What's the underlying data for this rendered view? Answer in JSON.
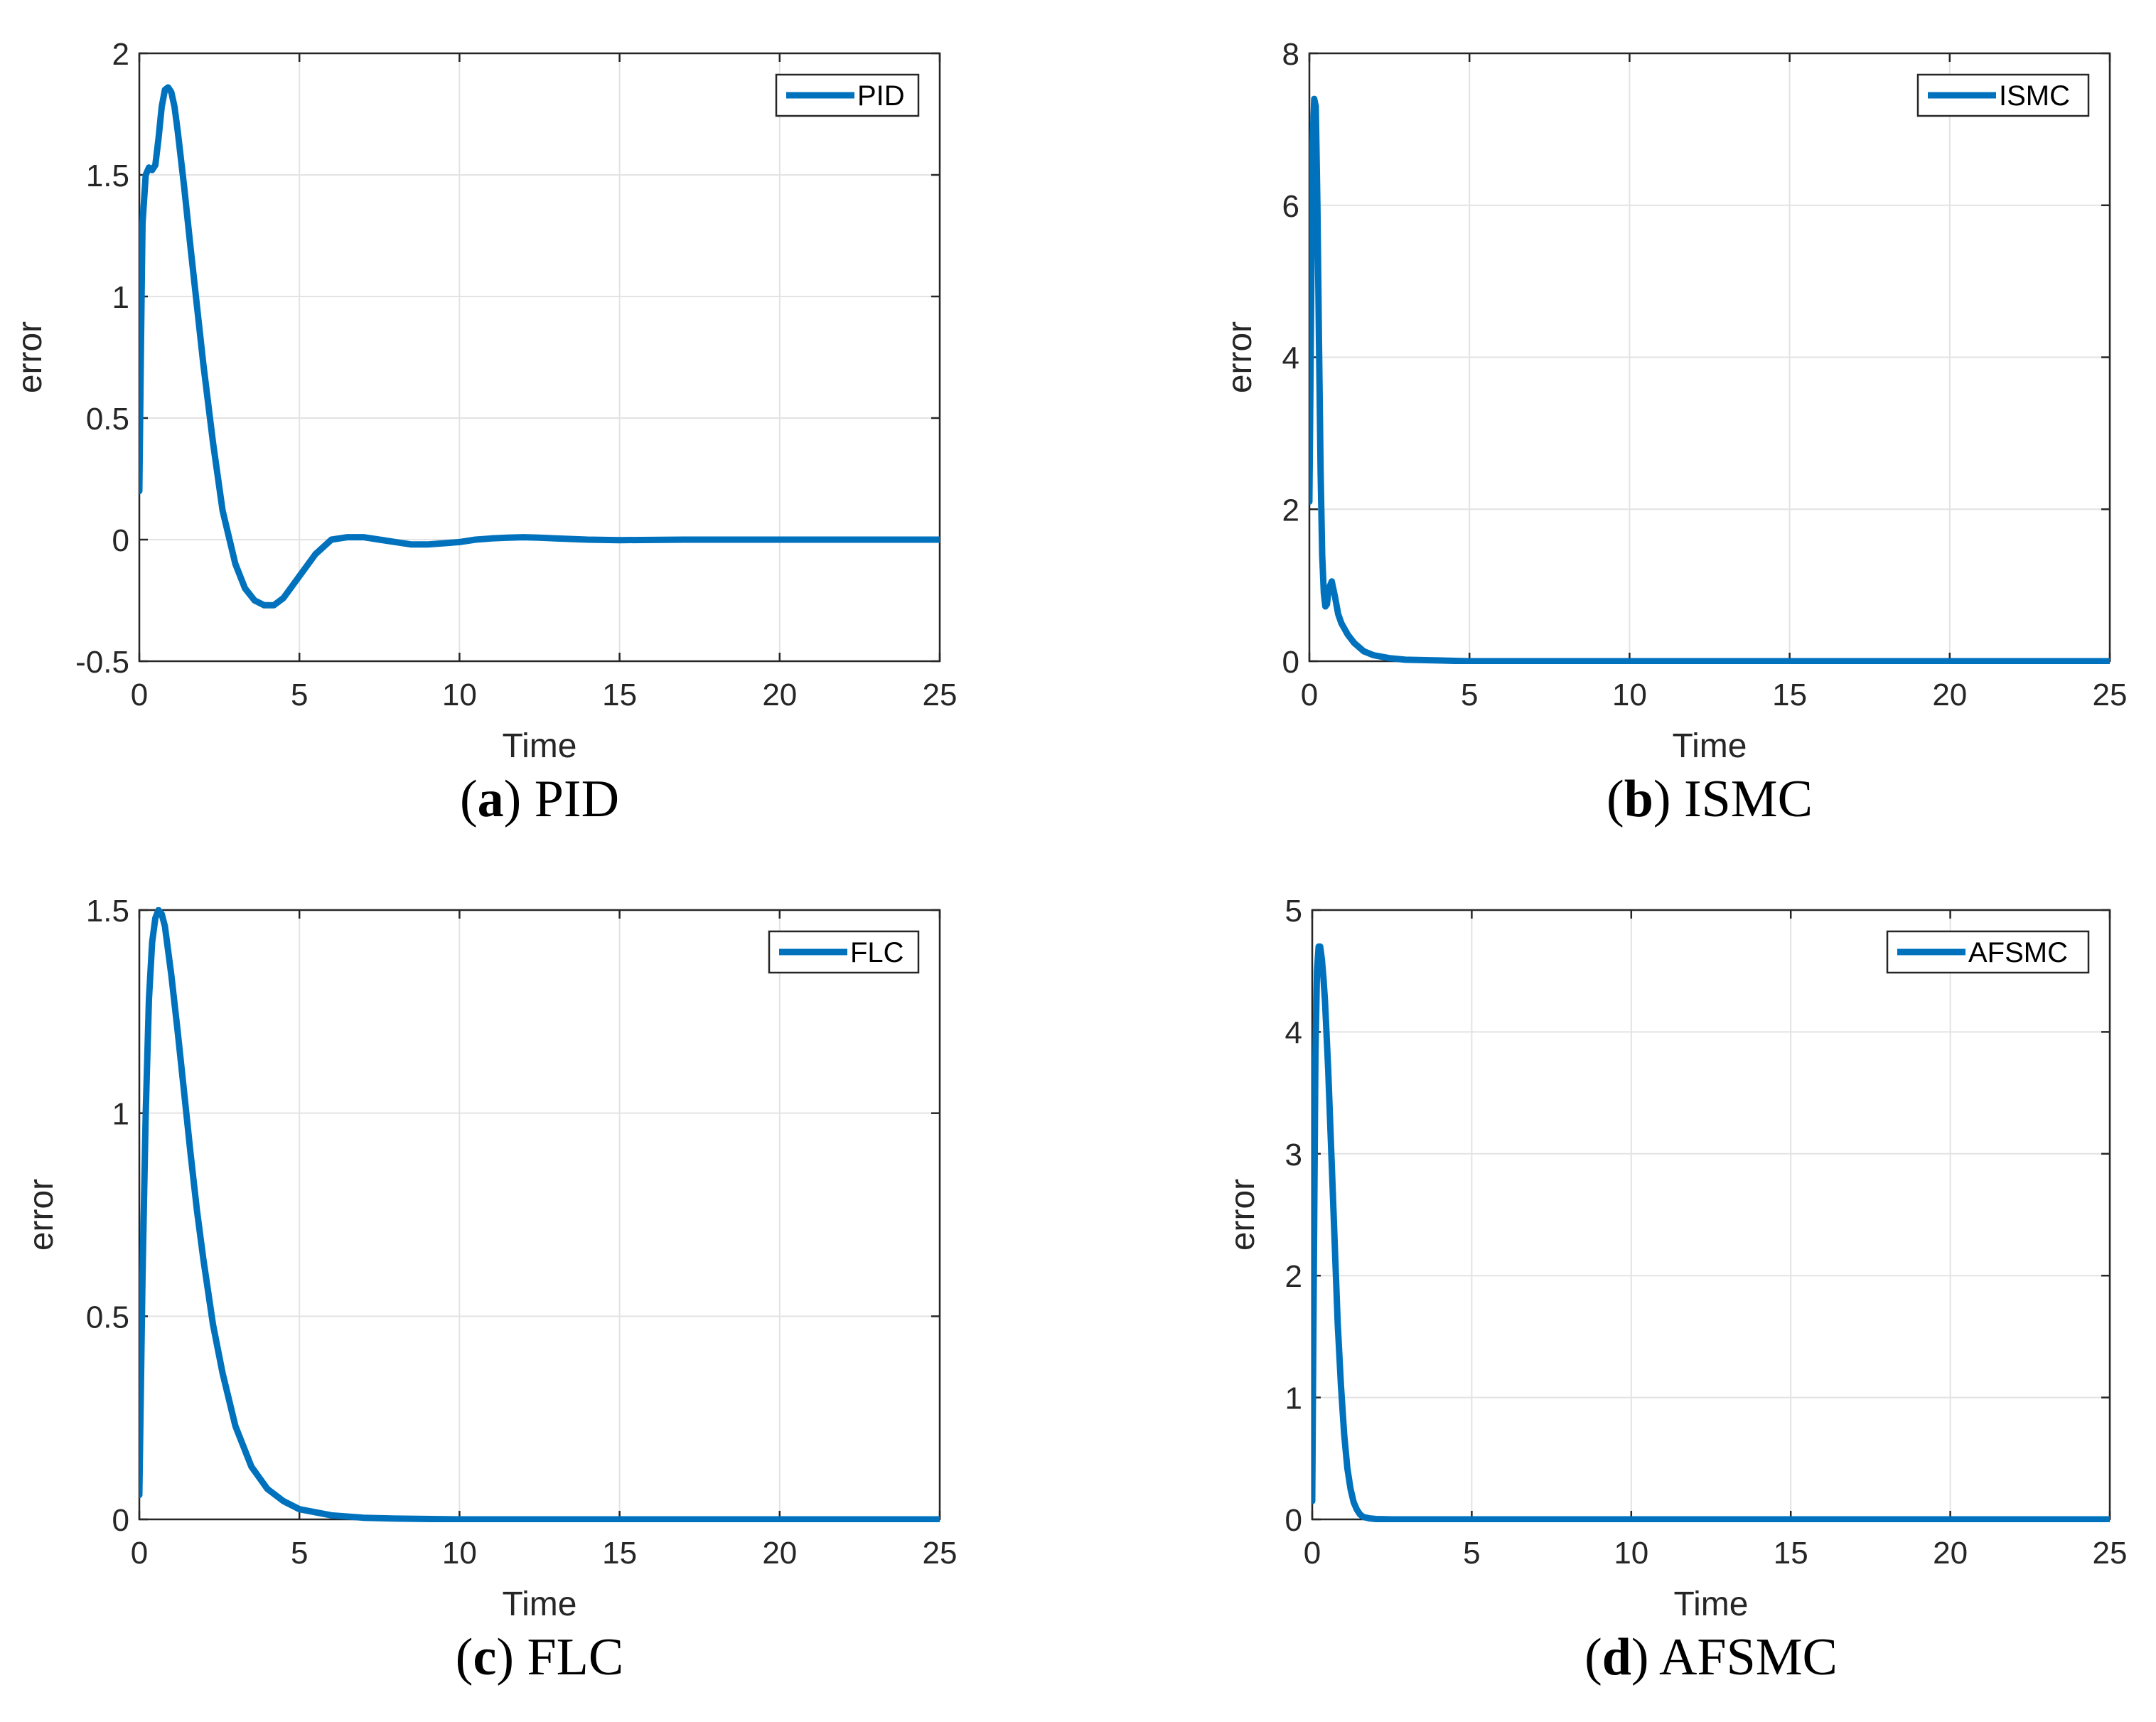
{
  "figure": {
    "colors": {
      "line": "#0072bd",
      "grid": "#e3e3e3",
      "axis": "#262626"
    }
  },
  "chart_data": [
    {
      "type": "line",
      "panel_letter": "a",
      "panel_title": "PID",
      "caption": {
        "open": "(",
        "letter": "a",
        "close": ")",
        "title": " PID"
      },
      "xlabel": "Time",
      "ylabel": "error",
      "xlim": [
        0,
        25
      ],
      "ylim": [
        -0.5,
        2
      ],
      "xticks": [
        0,
        5,
        10,
        15,
        20,
        25
      ],
      "xtick_labels": [
        "0",
        "5",
        "10",
        "15",
        "20",
        "25"
      ],
      "yticks": [
        -0.5,
        0,
        0.5,
        1,
        1.5,
        2
      ],
      "ytick_labels": [
        "-0.5",
        "0",
        "0.5",
        "1",
        "1.5",
        "2"
      ],
      "grid": true,
      "legend": {
        "entries": [
          "PID"
        ],
        "location": "top-right"
      },
      "series": [
        {
          "name": "PID",
          "x": [
            0,
            0.05,
            0.1,
            0.2,
            0.3,
            0.4,
            0.5,
            0.6,
            0.7,
            0.8,
            0.9,
            1.0,
            1.1,
            1.2,
            1.4,
            1.6,
            1.8,
            2.0,
            2.3,
            2.6,
            3.0,
            3.3,
            3.6,
            3.9,
            4.2,
            4.5,
            5.0,
            5.5,
            6.0,
            6.5,
            7.0,
            7.5,
            8.0,
            8.5,
            9.0,
            9.5,
            10.0,
            10.5,
            11.0,
            11.5,
            12.0,
            12.5,
            13.0,
            14.0,
            15.0,
            17.0,
            20.0,
            25.0
          ],
          "y": [
            0.2,
            0.8,
            1.3,
            1.5,
            1.53,
            1.52,
            1.54,
            1.65,
            1.78,
            1.85,
            1.86,
            1.84,
            1.78,
            1.68,
            1.45,
            1.2,
            0.96,
            0.72,
            0.4,
            0.12,
            -0.1,
            -0.2,
            -0.25,
            -0.27,
            -0.27,
            -0.24,
            -0.15,
            -0.06,
            0.0,
            0.01,
            0.01,
            0.0,
            -0.01,
            -0.02,
            -0.02,
            -0.015,
            -0.01,
            0.0,
            0.005,
            0.008,
            0.01,
            0.008,
            0.005,
            0.0,
            -0.002,
            0.0,
            0.0,
            0.0
          ]
        }
      ]
    },
    {
      "type": "line",
      "panel_letter": "b",
      "panel_title": "ISMC",
      "caption": {
        "open": "(",
        "letter": "b",
        "close": ")",
        "title": " ISMC"
      },
      "xlabel": "Time",
      "ylabel": "error",
      "xlim": [
        0,
        25
      ],
      "ylim": [
        0,
        8
      ],
      "xticks": [
        0,
        5,
        10,
        15,
        20,
        25
      ],
      "xtick_labels": [
        "0",
        "5",
        "10",
        "15",
        "20",
        "25"
      ],
      "yticks": [
        0,
        2,
        4,
        6,
        8
      ],
      "ytick_labels": [
        "0",
        "2",
        "4",
        "6",
        "8"
      ],
      "grid": true,
      "legend": {
        "entries": [
          "ISMC"
        ],
        "location": "top-right"
      },
      "series": [
        {
          "name": "ISMC",
          "x": [
            0,
            0.05,
            0.1,
            0.15,
            0.2,
            0.25,
            0.3,
            0.35,
            0.4,
            0.45,
            0.5,
            0.55,
            0.6,
            0.7,
            0.8,
            0.9,
            1.0,
            1.2,
            1.4,
            1.7,
            2.0,
            2.5,
            3.0,
            4.0,
            5.0,
            7.0,
            10.0,
            25.0
          ],
          "y": [
            2.1,
            4.5,
            6.8,
            7.4,
            7.3,
            6.0,
            4.2,
            2.5,
            1.4,
            0.9,
            0.72,
            0.75,
            0.95,
            1.05,
            0.85,
            0.62,
            0.5,
            0.35,
            0.24,
            0.13,
            0.08,
            0.04,
            0.02,
            0.01,
            0.0,
            0.0,
            0.0,
            0.0
          ]
        }
      ]
    },
    {
      "type": "line",
      "panel_letter": "c",
      "panel_title": "FLC",
      "caption": {
        "open": "(",
        "letter": "c",
        "close": ")",
        "title": " FLC"
      },
      "xlabel": "Time",
      "ylabel": "error",
      "xlim": [
        0,
        25
      ],
      "ylim": [
        0,
        1.5
      ],
      "xticks": [
        0,
        5,
        10,
        15,
        20,
        25
      ],
      "xtick_labels": [
        "0",
        "5",
        "10",
        "15",
        "20",
        "25"
      ],
      "yticks": [
        0,
        0.5,
        1,
        1.5
      ],
      "ytick_labels": [
        "0",
        "0.5",
        "1",
        "1.5"
      ],
      "grid": true,
      "legend": {
        "entries": [
          "FLC"
        ],
        "location": "top-right"
      },
      "series": [
        {
          "name": "FLC",
          "x": [
            0,
            0.1,
            0.2,
            0.3,
            0.4,
            0.5,
            0.6,
            0.7,
            0.8,
            0.9,
            1.0,
            1.2,
            1.4,
            1.6,
            1.8,
            2.0,
            2.3,
            2.6,
            3.0,
            3.5,
            4.0,
            4.5,
            5.0,
            6.0,
            7.0,
            8.0,
            10.0,
            25.0
          ],
          "y": [
            0.06,
            0.6,
            1.0,
            1.28,
            1.42,
            1.48,
            1.5,
            1.49,
            1.46,
            1.4,
            1.34,
            1.2,
            1.05,
            0.9,
            0.76,
            0.64,
            0.48,
            0.36,
            0.23,
            0.13,
            0.075,
            0.045,
            0.025,
            0.01,
            0.004,
            0.002,
            0.0,
            0.0
          ]
        }
      ]
    },
    {
      "type": "line",
      "panel_letter": "d",
      "panel_title": "AFSMC",
      "caption": {
        "open": "(",
        "letter": "d",
        "close": ")",
        "title": " AFSMC"
      },
      "xlabel": "Time",
      "ylabel": "error",
      "xlim": [
        0,
        25
      ],
      "ylim": [
        0,
        5
      ],
      "xticks": [
        0,
        5,
        10,
        15,
        20,
        25
      ],
      "xtick_labels": [
        "0",
        "5",
        "10",
        "15",
        "20",
        "25"
      ],
      "yticks": [
        0,
        1,
        2,
        3,
        4,
        5
      ],
      "ytick_labels": [
        "0",
        "1",
        "2",
        "3",
        "4",
        "5"
      ],
      "grid": true,
      "legend": {
        "entries": [
          "AFSMC"
        ],
        "location": "top-right"
      },
      "series": [
        {
          "name": "AFSMC",
          "x": [
            0,
            0.05,
            0.1,
            0.15,
            0.2,
            0.25,
            0.3,
            0.35,
            0.4,
            0.5,
            0.6,
            0.7,
            0.8,
            0.9,
            1.0,
            1.1,
            1.2,
            1.3,
            1.4,
            1.5,
            1.6,
            1.8,
            2.0,
            2.5,
            3.0,
            25.0
          ],
          "y": [
            0.15,
            2.0,
            3.8,
            4.5,
            4.7,
            4.7,
            4.6,
            4.45,
            4.25,
            3.7,
            3.0,
            2.3,
            1.6,
            1.1,
            0.7,
            0.42,
            0.25,
            0.14,
            0.08,
            0.04,
            0.02,
            0.008,
            0.003,
            0.0,
            0.0,
            0.0
          ]
        }
      ]
    }
  ]
}
